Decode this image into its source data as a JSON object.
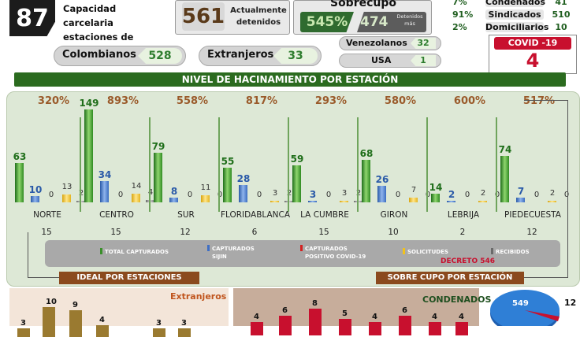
{
  "header": {
    "total_capacity": "87",
    "capacity_label_line1": "Capacidad carcelaria",
    "capacity_label_line2": "estaciones de policía",
    "current_detained": "561",
    "current_label_line1": "Actualmente",
    "current_label_line2": "detenidos",
    "overcrowding_title": "Sobrecupo",
    "overcrowding_pct": "545%",
    "overcrowding_num": "474",
    "overcrowding_sub": "Detenidos más",
    "status_rows": [
      {
        "pct": "7%",
        "label": "Condenados",
        "value": "41"
      },
      {
        "pct": "91%",
        "label": "Sindicados",
        "value": "510"
      },
      {
        "pct": "2%",
        "label": "Domiciliarios",
        "value": "10"
      }
    ]
  },
  "nationality": {
    "colombians_label": "Colombianos",
    "colombians_value": "528",
    "foreigners_label": "Extranjeros",
    "foreigners_value": "33",
    "venezuelans_label": "Venezolanos",
    "venezuelans_value": "32",
    "usa_label": "USA",
    "usa_value": "1"
  },
  "covid": {
    "title": "COVID -19",
    "value": "4"
  },
  "section_title": "NIVEL DE HACINAMIENTO POR ESTACIÓN",
  "chart_data": {
    "type": "bar",
    "categories": [
      "NORTE",
      "CENTRO",
      "SUR",
      "FLORIDABLANCA",
      "LA CUMBRE",
      "GIRON",
      "LEBRIJA",
      "PIEDECUESTA"
    ],
    "occupancy_pct": [
      "320%",
      "893%",
      "558%",
      "817%",
      "293%",
      "580%",
      "600%",
      "517%"
    ],
    "capacity": [
      "15",
      "15",
      "12",
      "6",
      "15",
      "10",
      "2",
      "12"
    ],
    "series": [
      {
        "name": "TOTAL CAPTURADOS",
        "color": "#3a8f2a",
        "values": [
          63,
          149,
          79,
          55,
          59,
          68,
          14,
          74
        ]
      },
      {
        "name": "CAPTURADOS SIJIN",
        "color": "#3f6fc4",
        "values": [
          10,
          34,
          8,
          28,
          3,
          26,
          2,
          7
        ]
      },
      {
        "name": "CAPTURADOS POSITIVO COVID-19",
        "color": "#d42020",
        "values": [
          0,
          0,
          0,
          0,
          0,
          0,
          0,
          0
        ]
      },
      {
        "name": "SOLICITUDES",
        "color": "#f2c21b",
        "values": [
          13,
          14,
          11,
          3,
          3,
          7,
          2,
          2
        ]
      },
      {
        "name": "RECIBIDOS",
        "color": "#8c8c8c",
        "values": [
          2,
          4,
          0,
          2,
          2,
          0,
          0,
          0
        ]
      }
    ]
  },
  "legend": {
    "total": "TOTAL CAPTURADOS",
    "sijin_1": "CAPTURADOS",
    "sijin_2": "SIJIN",
    "covid_1": "CAPTURADOS",
    "covid_2": "POSITIVO COVID-19",
    "solicitudes": "SOLICITUDES",
    "recibidos": "RECIBIDOS"
  },
  "decreto": "DECRETO 546",
  "ideal_label": "IDEAL POR ESTACIONES",
  "sobre_label": "SOBRE CUPO POR ESTACIÓN",
  "bottom": {
    "extranjeros_title": "Extranjeros",
    "extranjeros_values": [
      "3",
      "10",
      "9",
      "4",
      "3",
      "3"
    ],
    "condenados_title": "CONDENADOS",
    "condenados_values": [
      "4",
      "6",
      "8",
      "5",
      "4",
      "6",
      "4",
      "4"
    ],
    "pie_values": [
      "549",
      "12"
    ]
  }
}
